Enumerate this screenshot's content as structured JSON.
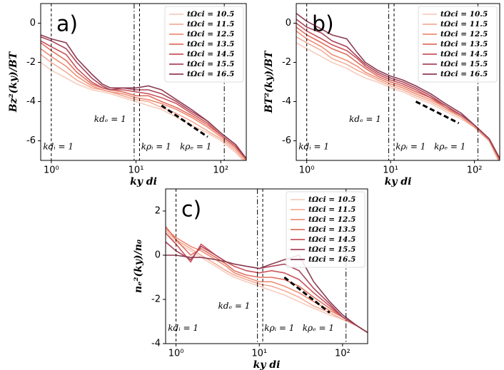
{
  "chart_data": [
    {
      "type": "line",
      "title": "a)",
      "xlabel": "ky di",
      "ylabel": "Bz²(ky)/BT",
      "xscale": "log",
      "legend": "upper right",
      "xlim": [
        0.75,
        200
      ],
      "xticks": [
        {
          "value": 1,
          "label": "10⁰"
        },
        {
          "value": 10,
          "label": "10¹"
        },
        {
          "value": 100,
          "label": "10²"
        }
      ],
      "ylim": [
        -7,
        1
      ],
      "yticks": [
        -6,
        -4,
        -2,
        0
      ],
      "x": [
        0.75,
        1,
        1.5,
        2,
        3,
        4,
        5,
        7,
        10,
        14,
        20,
        30,
        45,
        70,
        100,
        150,
        200
      ],
      "series": [
        {
          "name": "tΩci = 10.5",
          "color": "#f7cdbd",
          "values": [
            -2.0,
            -2.4,
            -2.8,
            -3.1,
            -3.4,
            -3.5,
            -3.6,
            -3.8,
            -4.0,
            -4.2,
            -4.4,
            -4.8,
            -5.2,
            -5.6,
            -6.0,
            -6.6,
            -7.2
          ]
        },
        {
          "name": "tΩci = 11.5",
          "color": "#f4ae98",
          "values": [
            -1.6,
            -2.0,
            -2.5,
            -2.9,
            -3.3,
            -3.4,
            -3.5,
            -3.7,
            -3.9,
            -4.0,
            -4.3,
            -4.6,
            -5.0,
            -5.5,
            -5.9,
            -6.5,
            -7.1
          ]
        },
        {
          "name": "tΩci = 12.5",
          "color": "#ee8e77",
          "values": [
            -1.3,
            -1.7,
            -2.2,
            -2.7,
            -3.2,
            -3.4,
            -3.5,
            -3.6,
            -3.8,
            -3.9,
            -4.1,
            -4.4,
            -4.8,
            -5.3,
            -5.8,
            -6.4,
            -7.0
          ]
        },
        {
          "name": "tΩci = 13.5",
          "color": "#e0705f",
          "values": [
            -1.0,
            -1.4,
            -1.9,
            -2.5,
            -3.1,
            -3.3,
            -3.4,
            -3.5,
            -3.7,
            -3.7,
            -4.0,
            -4.3,
            -4.7,
            -5.2,
            -5.7,
            -6.3,
            -7.0
          ]
        },
        {
          "name": "tΩci = 14.5",
          "color": "#c9545c",
          "values": [
            -0.9,
            -1.2,
            -1.6,
            -2.3,
            -3.0,
            -3.3,
            -3.4,
            -3.4,
            -3.5,
            -3.6,
            -3.8,
            -4.1,
            -4.6,
            -5.1,
            -5.7,
            -6.3,
            -6.9
          ]
        },
        {
          "name": "tΩci = 15.5",
          "color": "#aa455a",
          "values": [
            -0.7,
            -0.9,
            -1.3,
            -2.0,
            -2.8,
            -3.2,
            -3.4,
            -3.3,
            -3.4,
            -3.4,
            -3.6,
            -4.0,
            -4.5,
            -5.0,
            -5.6,
            -6.2,
            -6.9
          ]
        },
        {
          "name": "tΩci = 16.5",
          "color": "#8b3d52",
          "values": [
            -0.6,
            -0.8,
            -1.0,
            -1.8,
            -2.6,
            -3.1,
            -3.3,
            -3.3,
            -3.3,
            -3.2,
            -3.4,
            -3.9,
            -4.4,
            -5.0,
            -5.6,
            -6.2,
            -6.9
          ]
        }
      ],
      "vlines": [
        {
          "x": 1,
          "style": "dashed"
        },
        {
          "x": 9.5,
          "style": "dashdot"
        },
        {
          "x": 11,
          "style": "dashed"
        },
        {
          "x": 110,
          "style": "dashdot"
        }
      ],
      "fit_line": {
        "x": [
          20,
          70
        ],
        "y": [
          -4.2,
          -5.8
        ]
      },
      "annotations": [
        {
          "text": "kdᵢ = 1",
          "x": 0.8,
          "y": -6.3
        },
        {
          "text": "kdₑ = 1",
          "x": 3.2,
          "y": -4.9
        },
        {
          "text": "kρᵢ = 1",
          "x": 11.5,
          "y": -6.3
        },
        {
          "text": "kρₑ = 1",
          "x": 33,
          "y": -6.3
        }
      ]
    },
    {
      "type": "line",
      "title": "b)",
      "xlabel": "ky di",
      "ylabel": "BT²(ky)/BT",
      "xscale": "log",
      "legend": "upper right",
      "xlim": [
        0.75,
        200
      ],
      "xticks": [
        {
          "value": 1,
          "label": "10⁰"
        },
        {
          "value": 10,
          "label": "10¹"
        },
        {
          "value": 100,
          "label": "10²"
        }
      ],
      "ylim": [
        -7,
        1
      ],
      "yticks": [
        -6,
        -4,
        -2,
        0
      ],
      "x": [
        0.75,
        1,
        1.5,
        2,
        3,
        4,
        5,
        7,
        10,
        14,
        20,
        30,
        45,
        70,
        100,
        150,
        200
      ],
      "series": [
        {
          "name": "tΩci = 10.5",
          "color": "#f7cdbd",
          "values": [
            -1.0,
            -1.3,
            -1.7,
            -2.0,
            -2.3,
            -2.6,
            -2.8,
            -3.0,
            -3.3,
            -3.5,
            -3.8,
            -4.1,
            -4.5,
            -4.9,
            -5.3,
            -6.0,
            -7.2
          ]
        },
        {
          "name": "tΩci = 11.5",
          "color": "#f4ae98",
          "values": [
            -0.7,
            -1.0,
            -1.4,
            -1.8,
            -2.1,
            -2.4,
            -2.6,
            -2.9,
            -3.2,
            -3.4,
            -3.7,
            -4.0,
            -4.4,
            -4.8,
            -5.3,
            -6.0,
            -7.1
          ]
        },
        {
          "name": "tΩci = 12.5",
          "color": "#ee8e77",
          "values": [
            -0.4,
            -0.8,
            -1.2,
            -1.6,
            -1.9,
            -2.2,
            -2.5,
            -2.8,
            -3.1,
            -3.3,
            -3.6,
            -3.9,
            -4.3,
            -4.8,
            -5.3,
            -6.0,
            -7.0
          ]
        },
        {
          "name": "tΩci = 13.5",
          "color": "#e0705f",
          "values": [
            -0.2,
            -0.6,
            -1.0,
            -1.3,
            -1.6,
            -2.0,
            -2.3,
            -2.7,
            -3.0,
            -3.2,
            -3.5,
            -3.8,
            -4.3,
            -4.7,
            -5.2,
            -5.9,
            -7.0
          ]
        },
        {
          "name": "tΩci = 14.5",
          "color": "#c9545c",
          "values": [
            0.0,
            -0.4,
            -0.8,
            -1.1,
            -1.4,
            -1.8,
            -2.2,
            -2.6,
            -2.9,
            -3.1,
            -3.4,
            -3.8,
            -4.2,
            -4.7,
            -5.2,
            -5.9,
            -6.9
          ]
        },
        {
          "name": "tΩci = 15.5",
          "color": "#aa455a",
          "values": [
            0.2,
            -0.2,
            -0.5,
            -0.9,
            -1.2,
            -1.7,
            -2.1,
            -2.5,
            -2.8,
            -3.0,
            -3.3,
            -3.7,
            -4.2,
            -4.7,
            -5.2,
            -5.9,
            -6.9
          ]
        },
        {
          "name": "tΩci = 16.5",
          "color": "#8b3d52",
          "values": [
            0.5,
            0.1,
            -0.3,
            -0.6,
            -0.8,
            -1.5,
            -2.0,
            -2.4,
            -2.7,
            -2.9,
            -3.2,
            -3.6,
            -4.1,
            -4.6,
            -5.2,
            -5.9,
            -6.9
          ]
        }
      ],
      "vlines": [
        {
          "x": 1,
          "style": "dashed"
        },
        {
          "x": 9.5,
          "style": "dashdot"
        },
        {
          "x": 11,
          "style": "dashed"
        },
        {
          "x": 110,
          "style": "dashdot"
        }
      ],
      "fit_line": {
        "x": [
          20,
          65
        ],
        "y": [
          -4.0,
          -5.1
        ]
      },
      "annotations": [
        {
          "text": "kdᵢ = 1",
          "x": 0.8,
          "y": -6.3
        },
        {
          "text": "kdₑ = 1",
          "x": 3.2,
          "y": -4.9
        },
        {
          "text": "kρᵢ = 1",
          "x": 11.5,
          "y": -6.3
        },
        {
          "text": "kρₑ = 1",
          "x": 33,
          "y": -6.3
        }
      ]
    },
    {
      "type": "line",
      "title": "c)",
      "xlabel": "ky di",
      "ylabel": "nₑ²(ky)/n₀",
      "xscale": "log",
      "legend": "upper right",
      "xlim": [
        0.75,
        200
      ],
      "xticks": [
        {
          "value": 1,
          "label": "10⁰"
        },
        {
          "value": 10,
          "label": "10¹"
        },
        {
          "value": 100,
          "label": "10²"
        }
      ],
      "ylim": [
        -4,
        3
      ],
      "yticks": [
        -4,
        -2,
        0,
        2
      ],
      "x": [
        0.75,
        1,
        1.5,
        2,
        3,
        4,
        5,
        7,
        10,
        14,
        20,
        30,
        45,
        70,
        100,
        150,
        200
      ],
      "series": [
        {
          "name": "tΩci = 10.5",
          "color": "#f7cdbd",
          "values": [
            1.0,
            0.6,
            0.2,
            -0.1,
            -0.5,
            -0.8,
            -1.0,
            -1.2,
            -1.4,
            -1.6,
            -1.8,
            -2.1,
            -2.4,
            -2.7,
            -2.9,
            -3.2,
            -3.5
          ]
        },
        {
          "name": "tΩci = 11.5",
          "color": "#f4ae98",
          "values": [
            1.1,
            0.7,
            0.3,
            0.0,
            -0.4,
            -0.7,
            -0.9,
            -1.1,
            -1.3,
            -1.4,
            -1.6,
            -1.9,
            -2.3,
            -2.6,
            -2.9,
            -3.2,
            -3.5
          ]
        },
        {
          "name": "tΩci = 12.5",
          "color": "#ee8e77",
          "values": [
            1.2,
            0.8,
            0.4,
            0.2,
            -0.2,
            -0.5,
            -0.8,
            -1.0,
            -1.2,
            -1.2,
            -1.4,
            -1.7,
            -2.1,
            -2.5,
            -2.8,
            -3.2,
            -3.5
          ]
        },
        {
          "name": "tΩci = 13.5",
          "color": "#e0705f",
          "values": [
            1.3,
            0.7,
            0.0,
            0.3,
            -0.1,
            -0.4,
            -0.7,
            -0.9,
            -1.0,
            -1.0,
            -1.1,
            -1.4,
            -1.9,
            -2.4,
            -2.8,
            -3.2,
            -3.5
          ]
        },
        {
          "name": "tΩci = 14.5",
          "color": "#c9545c",
          "values": [
            1.0,
            0.5,
            -0.3,
            0.5,
            0.0,
            -0.3,
            -0.5,
            -0.7,
            -0.8,
            -0.7,
            -0.8,
            -1.1,
            -1.7,
            -2.3,
            -2.8,
            -3.2,
            -3.5
          ]
        },
        {
          "name": "tΩci = 15.5",
          "color": "#aa455a",
          "values": [
            0.6,
            0.2,
            -0.2,
            0.4,
            0.0,
            -0.3,
            -0.4,
            -0.5,
            -0.6,
            -0.5,
            -0.4,
            -0.7,
            -1.5,
            -2.2,
            -2.8,
            -3.2,
            -3.5
          ]
        },
        {
          "name": "tΩci = 16.5",
          "color": "#8b3d52",
          "values": [
            0.0,
            0.0,
            -0.1,
            -0.1,
            -0.2,
            -0.3,
            -0.4,
            -0.5,
            -0.6,
            -0.4,
            -0.2,
            0.0,
            -1.2,
            -2.1,
            -2.7,
            -3.2,
            -3.5
          ]
        }
      ],
      "vlines": [
        {
          "x": 1,
          "style": "dashed"
        },
        {
          "x": 9.5,
          "style": "dashdot"
        },
        {
          "x": 11,
          "style": "dashed"
        },
        {
          "x": 110,
          "style": "dashdot"
        }
      ],
      "fit_line": {
        "x": [
          20,
          70
        ],
        "y": [
          -1.0,
          -2.6
        ]
      },
      "annotations": [
        {
          "text": "kdᵢ = 1",
          "x": 0.8,
          "y": -3.3
        },
        {
          "text": "kdₑ = 1",
          "x": 3.2,
          "y": -2.3
        },
        {
          "text": "kρᵢ = 1",
          "x": 11.5,
          "y": -3.3
        },
        {
          "text": "kρₑ = 1",
          "x": 33,
          "y": -3.3
        }
      ]
    }
  ]
}
